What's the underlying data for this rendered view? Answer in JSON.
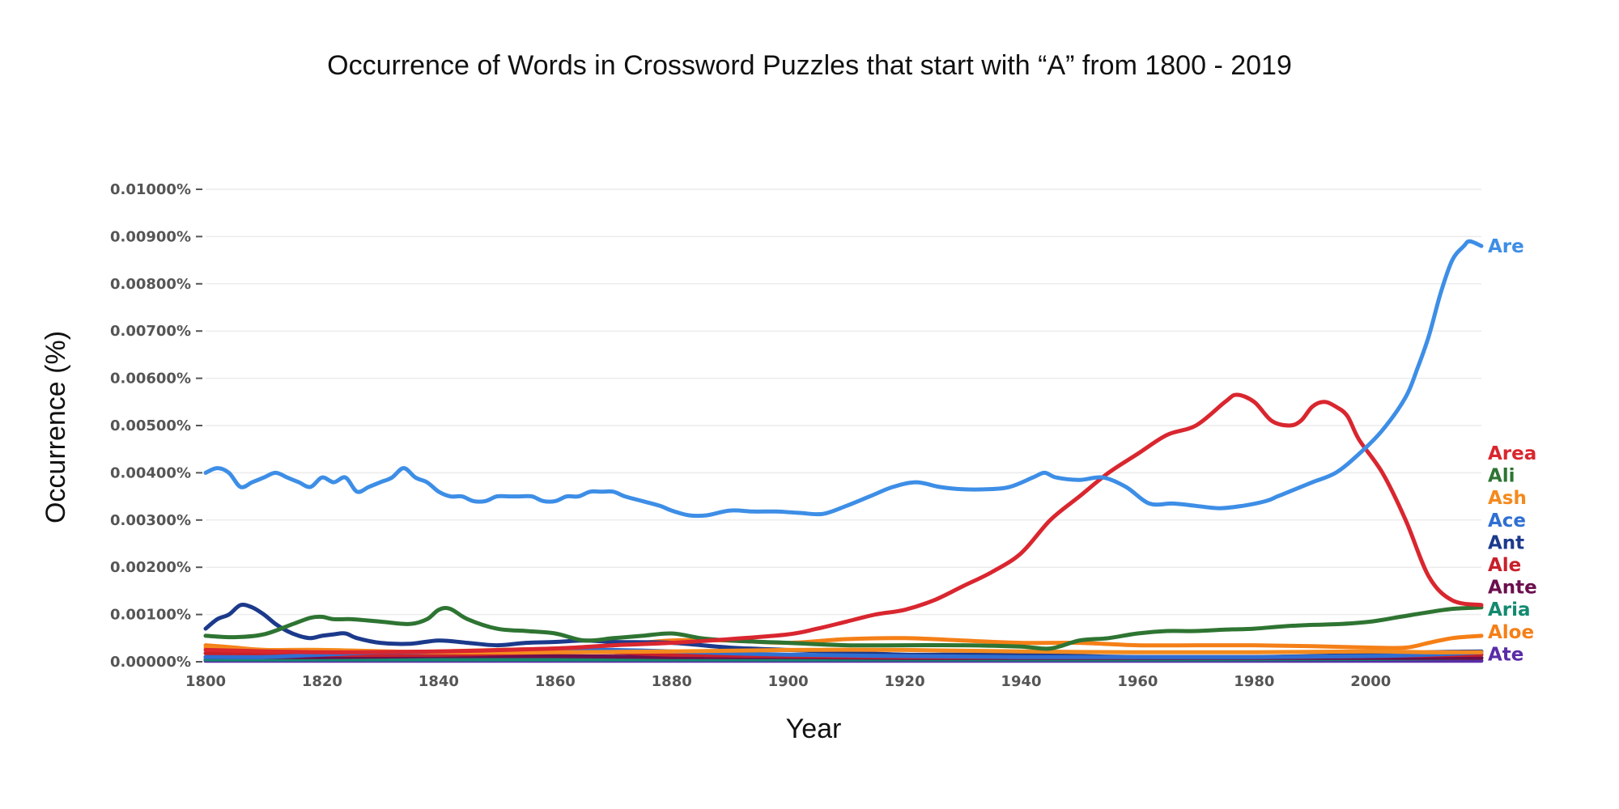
{
  "chart_data": {
    "type": "line",
    "title": "Occurrence of Words in Crossword Puzzles that start with “A” from 1800 - 2019",
    "xlabel": "Year",
    "ylabel": "Occurrence (%)",
    "xlim": [
      1800,
      2019
    ],
    "ylim": [
      0,
      0.01
    ],
    "x_ticks": [
      1800,
      1820,
      1840,
      1860,
      1880,
      1900,
      1920,
      1940,
      1960,
      1980,
      2000
    ],
    "x_tick_labels": [
      "1800",
      "1820",
      "1840",
      "1860",
      "1880",
      "1900",
      "1920",
      "1940",
      "1960",
      "1980",
      "2000"
    ],
    "y_ticks": [
      0,
      0.001,
      0.002,
      0.003,
      0.004,
      0.005,
      0.006,
      0.007,
      0.008,
      0.009,
      0.01
    ],
    "y_tick_labels": [
      "0.00000%",
      "0.00100%",
      "0.00200%",
      "0.00300%",
      "0.00400%",
      "0.00500%",
      "0.00600%",
      "0.00700%",
      "0.00800%",
      "0.00900%",
      "0.01000%"
    ],
    "grid": true,
    "legend": "labels at right end of each line",
    "series": [
      {
        "name": "Are",
        "color": "#3d8ee6",
        "x": [
          1800,
          1802,
          1804,
          1806,
          1808,
          1810,
          1812,
          1814,
          1816,
          1818,
          1820,
          1822,
          1824,
          1826,
          1828,
          1830,
          1832,
          1834,
          1836,
          1838,
          1840,
          1842,
          1844,
          1846,
          1848,
          1850,
          1852,
          1854,
          1856,
          1858,
          1860,
          1862,
          1864,
          1866,
          1868,
          1870,
          1872,
          1875,
          1878,
          1880,
          1883,
          1886,
          1890,
          1894,
          1898,
          1902,
          1906,
          1910,
          1914,
          1918,
          1922,
          1926,
          1930,
          1934,
          1938,
          1942,
          1944,
          1946,
          1950,
          1954,
          1958,
          1962,
          1966,
          1970,
          1974,
          1978,
          1982,
          1984,
          1986,
          1990,
          1994,
          1998,
          2002,
          2006,
          2008,
          2010,
          2012,
          2014,
          2016,
          2017,
          2019
        ],
        "y": [
          0.004,
          0.0041,
          0.004,
          0.0037,
          0.0038,
          0.0039,
          0.004,
          0.0039,
          0.0038,
          0.0037,
          0.0039,
          0.0038,
          0.0039,
          0.0036,
          0.0037,
          0.0038,
          0.0039,
          0.0041,
          0.0039,
          0.0038,
          0.0036,
          0.0035,
          0.0035,
          0.0034,
          0.0034,
          0.0035,
          0.0035,
          0.0035,
          0.0035,
          0.0034,
          0.0034,
          0.0035,
          0.0035,
          0.0036,
          0.0036,
          0.0036,
          0.0035,
          0.0034,
          0.0033,
          0.0032,
          0.0031,
          0.0031,
          0.0032,
          0.00318,
          0.00318,
          0.00315,
          0.00313,
          0.0033,
          0.0035,
          0.0037,
          0.0038,
          0.0037,
          0.00365,
          0.00365,
          0.0037,
          0.0039,
          0.004,
          0.0039,
          0.00385,
          0.0039,
          0.0037,
          0.00335,
          0.00335,
          0.0033,
          0.00325,
          0.0033,
          0.0034,
          0.0035,
          0.0036,
          0.0038,
          0.004,
          0.0044,
          0.0049,
          0.0056,
          0.0062,
          0.0069,
          0.0078,
          0.0085,
          0.0088,
          0.0089,
          0.0088
        ]
      },
      {
        "name": "Area",
        "color": "#d9262f",
        "x": [
          1800,
          1820,
          1840,
          1860,
          1870,
          1880,
          1890,
          1900,
          1905,
          1910,
          1915,
          1920,
          1925,
          1930,
          1935,
          1940,
          1945,
          1950,
          1955,
          1960,
          1965,
          1970,
          1975,
          1977,
          1980,
          1983,
          1986,
          1988,
          1990,
          1992,
          1994,
          1996,
          1998,
          2002,
          2006,
          2010,
          2014,
          2019
        ],
        "y": [
          0.00025,
          0.0002,
          0.00022,
          0.00028,
          0.00035,
          0.0004,
          0.00048,
          0.00058,
          0.0007,
          0.00085,
          0.001,
          0.0011,
          0.0013,
          0.0016,
          0.0019,
          0.0023,
          0.003,
          0.0035,
          0.004,
          0.0044,
          0.0048,
          0.005,
          0.0055,
          0.00565,
          0.0055,
          0.0051,
          0.005,
          0.0051,
          0.0054,
          0.0055,
          0.0054,
          0.0052,
          0.0047,
          0.004,
          0.003,
          0.0018,
          0.0013,
          0.0012
        ]
      },
      {
        "name": "Ali",
        "color": "#2e7432",
        "x": [
          1800,
          1805,
          1810,
          1815,
          1818,
          1820,
          1822,
          1825,
          1830,
          1835,
          1838,
          1840,
          1842,
          1845,
          1850,
          1855,
          1860,
          1865,
          1870,
          1875,
          1880,
          1885,
          1890,
          1900,
          1910,
          1920,
          1930,
          1940,
          1945,
          1950,
          1955,
          1960,
          1965,
          1970,
          1975,
          1980,
          1985,
          1990,
          1995,
          2000,
          2005,
          2010,
          2014,
          2019
        ],
        "y": [
          0.00055,
          0.00052,
          0.00058,
          0.0008,
          0.00093,
          0.00095,
          0.0009,
          0.0009,
          0.00085,
          0.0008,
          0.0009,
          0.0011,
          0.00112,
          0.0009,
          0.0007,
          0.00065,
          0.0006,
          0.00045,
          0.0005,
          0.00055,
          0.0006,
          0.0005,
          0.00045,
          0.0004,
          0.00035,
          0.00035,
          0.00035,
          0.00032,
          0.00028,
          0.00045,
          0.0005,
          0.0006,
          0.00065,
          0.00065,
          0.00068,
          0.0007,
          0.00075,
          0.00078,
          0.0008,
          0.00085,
          0.00095,
          0.00105,
          0.00112,
          0.00115
        ]
      },
      {
        "name": "Ash",
        "color": "#f48a1d",
        "x": [
          1800,
          1810,
          1820,
          1840,
          1860,
          1880,
          1900,
          1920,
          1940,
          1960,
          1980,
          2000,
          2010,
          2019
        ],
        "y": [
          0.0003,
          0.00025,
          0.00025,
          0.0002,
          0.0002,
          0.00022,
          0.00025,
          0.00025,
          0.00022,
          0.0002,
          0.0002,
          0.00022,
          0.0002,
          0.0002
        ]
      },
      {
        "name": "Ace",
        "color": "#2f6fd2",
        "x": [
          1800,
          1810,
          1820,
          1830,
          1840,
          1850,
          1860,
          1870,
          1880,
          1890,
          1900,
          1920,
          1940,
          1960,
          1980,
          2000,
          2010,
          2019
        ],
        "y": [
          0.0001,
          0.0001,
          0.00015,
          0.0002,
          0.0002,
          0.0002,
          0.00025,
          0.00025,
          0.00022,
          0.00018,
          0.00015,
          0.00012,
          0.0001,
          0.0001,
          0.0001,
          0.00012,
          0.00015,
          0.0002
        ]
      },
      {
        "name": "Ant",
        "color": "#1c3a8c",
        "x": [
          1800,
          1802,
          1804,
          1806,
          1808,
          1810,
          1812,
          1814,
          1816,
          1818,
          1820,
          1822,
          1824,
          1826,
          1830,
          1835,
          1840,
          1845,
          1850,
          1855,
          1860,
          1865,
          1870,
          1880,
          1890,
          1900,
          1910,
          1920,
          1930,
          1940,
          1960,
          1980,
          2000,
          2010,
          2019
        ],
        "y": [
          0.0007,
          0.0009,
          0.001,
          0.0012,
          0.00115,
          0.001,
          0.0008,
          0.00065,
          0.00055,
          0.0005,
          0.00055,
          0.00058,
          0.0006,
          0.0005,
          0.0004,
          0.00038,
          0.00045,
          0.0004,
          0.00035,
          0.0004,
          0.00042,
          0.00045,
          0.00042,
          0.0004,
          0.0003,
          0.00025,
          0.0002,
          0.00015,
          0.00015,
          0.00015,
          0.0001,
          0.0001,
          0.00015,
          0.0002,
          0.00022
        ]
      },
      {
        "name": "Ale",
        "color": "#c8202c",
        "x": [
          1800,
          1820,
          1840,
          1860,
          1870,
          1880,
          1900,
          1920,
          1940,
          1960,
          1980,
          2000,
          2019
        ],
        "y": [
          0.00018,
          0.00015,
          0.00015,
          0.0002,
          0.0002,
          0.00015,
          0.00012,
          0.0001,
          0.0001,
          0.0001,
          0.0001,
          0.00012,
          0.00015
        ]
      },
      {
        "name": "Ante",
        "color": "#6b0f4e",
        "x": [
          1800,
          1820,
          1840,
          1860,
          1880,
          1900,
          1920,
          1940,
          1960,
          1980,
          2000,
          2019
        ],
        "y": [
          0.0001,
          0.0001,
          0.00012,
          0.00012,
          0.0001,
          0.0001,
          8e-05,
          8e-05,
          8e-05,
          8e-05,
          8e-05,
          8e-05
        ]
      },
      {
        "name": "Aria",
        "color": "#138a70",
        "x": [
          1800,
          1840,
          1880,
          1920,
          1960,
          2000,
          2019
        ],
        "y": [
          5e-05,
          5e-05,
          5e-05,
          5e-05,
          5e-05,
          6e-05,
          8e-05
        ]
      },
      {
        "name": "Aloe",
        "color": "#f57f17",
        "x": [
          1800,
          1805,
          1810,
          1820,
          1830,
          1840,
          1850,
          1860,
          1870,
          1880,
          1890,
          1900,
          1910,
          1920,
          1930,
          1940,
          1950,
          1960,
          1970,
          1980,
          1990,
          2000,
          2006,
          2010,
          2014,
          2019
        ],
        "y": [
          0.00035,
          0.0003,
          0.00025,
          0.00022,
          0.0002,
          0.00022,
          0.00025,
          0.00028,
          0.00035,
          0.00045,
          0.00045,
          0.0004,
          0.00048,
          0.0005,
          0.00045,
          0.0004,
          0.0004,
          0.00035,
          0.00035,
          0.00035,
          0.00033,
          0.0003,
          0.0003,
          0.0004,
          0.0005,
          0.00055
        ]
      },
      {
        "name": "Ate",
        "color": "#5a2ca8",
        "x": [
          1800,
          1850,
          1900,
          1950,
          2000,
          2019
        ],
        "y": [
          2e-05,
          2e-05,
          2e-05,
          2e-05,
          2e-05,
          2e-05
        ]
      }
    ]
  }
}
